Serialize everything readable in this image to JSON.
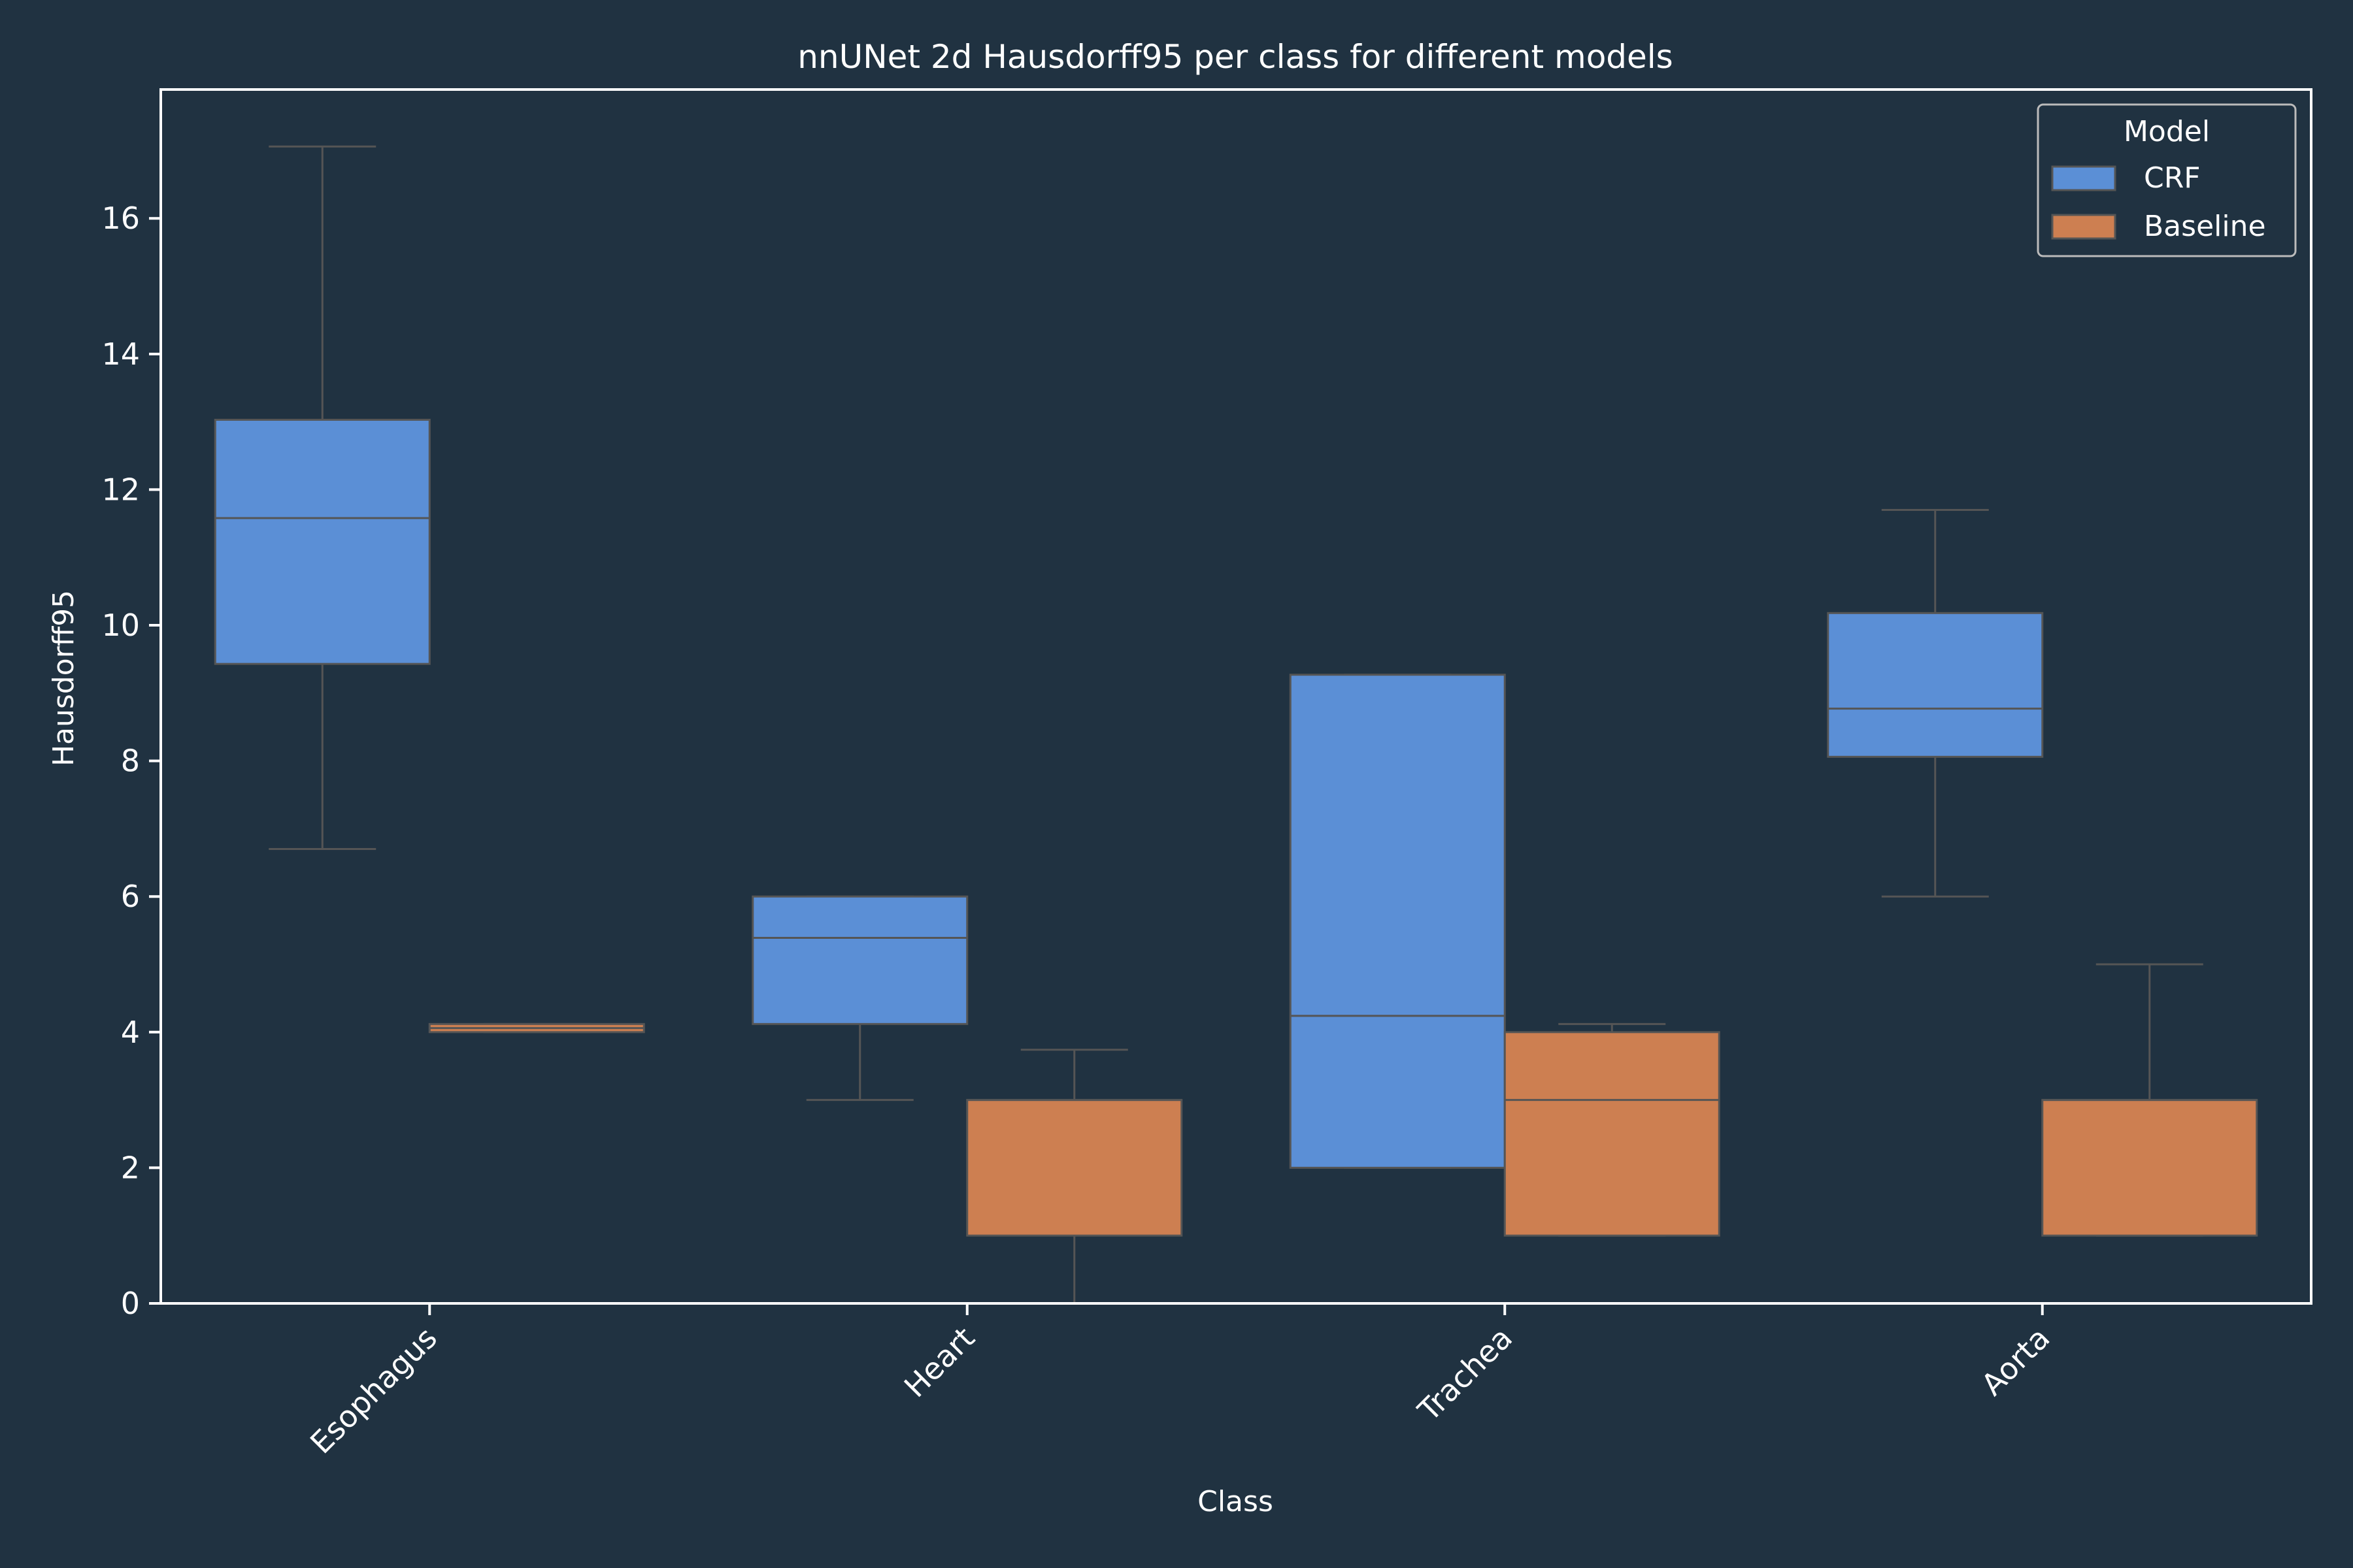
{
  "chart_data": {
    "type": "box",
    "title": "nnUNet 2d Hausdorff95 per class for different models",
    "xlabel": "Class",
    "ylabel": "Hausdorff95",
    "ylim": [
      0,
      17.9
    ],
    "yticks": [
      0,
      2,
      4,
      6,
      8,
      10,
      12,
      14,
      16
    ],
    "categories": [
      "Esophagus",
      "Heart",
      "Trachea",
      "Aorta"
    ],
    "legend": {
      "title": "Model",
      "position": "top-right"
    },
    "series": [
      {
        "name": "CRF",
        "color": "#5b8fd6",
        "boxes": [
          {
            "whisker_low": 6.7,
            "q1": 9.43,
            "median": 11.58,
            "q3": 13.03,
            "whisker_high": 17.06
          },
          {
            "whisker_low": 3.0,
            "q1": 4.12,
            "median": 5.39,
            "q3": 6.0,
            "whisker_high": 6.0
          },
          {
            "whisker_low": 2.0,
            "q1": 2.0,
            "median": 4.24,
            "q3": 9.27,
            "whisker_high": 9.27
          },
          {
            "whisker_low": 6.0,
            "q1": 8.06,
            "median": 8.77,
            "q3": 10.18,
            "whisker_high": 11.7
          }
        ]
      },
      {
        "name": "Baseline",
        "color": "#cd7f51",
        "boxes": [
          {
            "whisker_low": 4.0,
            "q1": 4.0,
            "median": 4.06,
            "q3": 4.12,
            "whisker_high": 4.12
          },
          {
            "whisker_low": 0.0,
            "q1": 1.0,
            "median": 3.0,
            "q3": 3.0,
            "whisker_high": 3.74
          },
          {
            "whisker_low": 1.0,
            "q1": 1.0,
            "median": 3.0,
            "q3": 4.0,
            "whisker_high": 4.12
          },
          {
            "whisker_low": 1.0,
            "q1": 1.0,
            "median": 3.0,
            "q3": 3.0,
            "whisker_high": 5.0
          }
        ]
      }
    ],
    "colors": {
      "background": "#203241",
      "text": "#ffffff",
      "whisker": "#555555"
    }
  }
}
